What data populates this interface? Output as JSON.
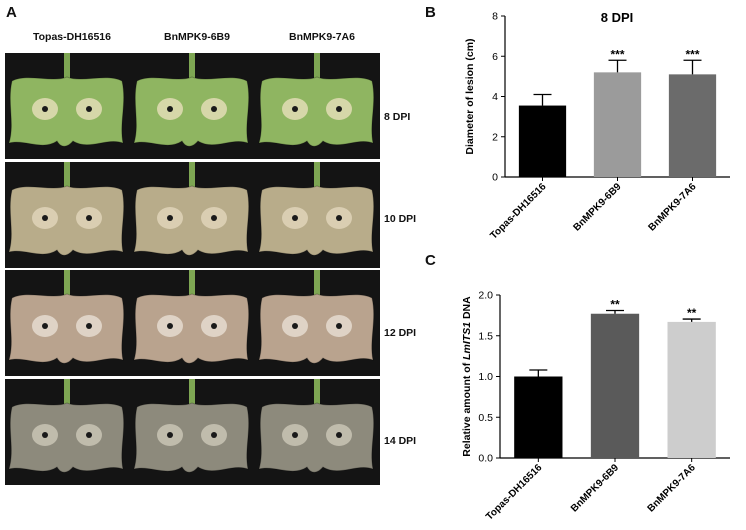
{
  "panel_a": {
    "letter": "A",
    "columns": [
      "Topas-DH16516",
      "BnMPK9-6B9",
      "BnMPK9-7A6"
    ],
    "rows": [
      {
        "label": "8 DPI",
        "leaf": "#8fb561",
        "lesion": "#e3ddb6"
      },
      {
        "label": "10 DPI",
        "leaf": "#b8ac8a",
        "lesion": "#dfd3b8"
      },
      {
        "label": "12 DPI",
        "leaf": "#b9a38e",
        "lesion": "#e5dcd0"
      },
      {
        "label": "14 DPI",
        "leaf": "#8d8a7c",
        "lesion": "#c9c4b5"
      }
    ]
  },
  "panel_b": {
    "letter": "B",
    "chart_data": {
      "type": "bar",
      "title": "8 DPI",
      "ylabel": "Diameter of lesion (cm)",
      "xlabel": "",
      "categories": [
        "Topas-DH16516",
        "BnMPK9-6B9",
        "BnMPK9-7A6"
      ],
      "values": [
        3.55,
        5.2,
        5.1
      ],
      "errors": [
        0.55,
        0.6,
        0.7
      ],
      "significance": [
        "",
        "***",
        "***"
      ],
      "colors": [
        "#000000",
        "#9b9b9b",
        "#6b6b6b"
      ],
      "ylim": [
        0,
        8
      ],
      "yticks": [
        0,
        2,
        4,
        6,
        8
      ],
      "grid": false
    }
  },
  "panel_c": {
    "letter": "C",
    "chart_data": {
      "type": "bar",
      "title": "",
      "ylabel_parts": [
        "Relative amount of ",
        "LmITS1",
        " DNA"
      ],
      "xlabel": "",
      "categories": [
        "Topas-DH16516",
        "BnMPK9-6B9",
        "BnMPK9-7A6"
      ],
      "values": [
        1.0,
        1.77,
        1.67
      ],
      "errors": [
        0.08,
        0.04,
        0.035
      ],
      "significance": [
        "",
        "**",
        "**"
      ],
      "colors": [
        "#000000",
        "#5a5a5a",
        "#cdcdcd"
      ],
      "ylim": [
        0,
        2.0
      ],
      "yticks": [
        "0.0",
        "0.5",
        "1.0",
        "1.5",
        "2.0"
      ],
      "grid": false
    }
  }
}
